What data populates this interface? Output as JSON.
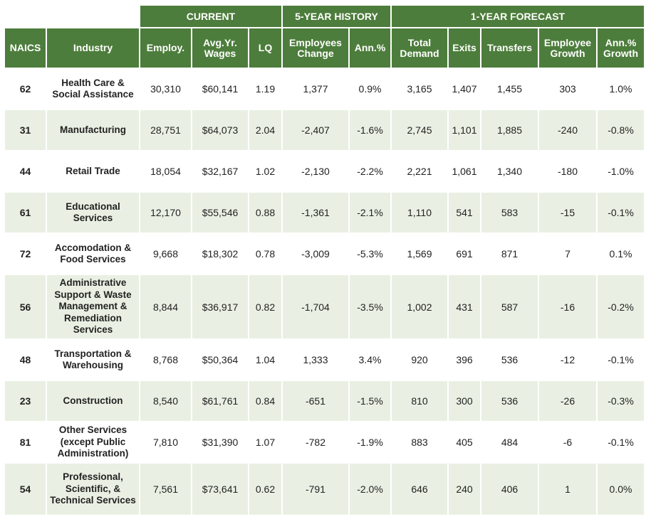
{
  "group_headers": {
    "current": "CURRENT",
    "history": "5-YEAR HISTORY",
    "forecast": "1-YEAR FORECAST"
  },
  "columns": {
    "naics": "NAICS",
    "industry": "Industry",
    "employ": "Employ.",
    "wages": "Avg.Yr. Wages",
    "lq": "LQ",
    "emp_change": "Employees Change",
    "ann_pct": "Ann.%",
    "total_demand": "Total Demand",
    "exits": "Exits",
    "transfers": "Transfers",
    "emp_growth": "Employee Growth",
    "ann_growth": "Ann.% Growth"
  },
  "rows": [
    {
      "naics": "62",
      "industry": "Health Care & Social Assistance",
      "employ": "30,310",
      "wages": "$60,141",
      "lq": "1.19",
      "emp_change": "1,377",
      "ann_pct": "0.9%",
      "total_demand": "3,165",
      "exits": "1,407",
      "transfers": "1,455",
      "emp_growth": "303",
      "ann_growth": "1.0%"
    },
    {
      "naics": "31",
      "industry": "Manufacturing",
      "employ": "28,751",
      "wages": "$64,073",
      "lq": "2.04",
      "emp_change": "-2,407",
      "ann_pct": "-1.6%",
      "total_demand": "2,745",
      "exits": "1,101",
      "transfers": "1,885",
      "emp_growth": "-240",
      "ann_growth": "-0.8%"
    },
    {
      "naics": "44",
      "industry": "Retail Trade",
      "employ": "18,054",
      "wages": "$32,167",
      "lq": "1.02",
      "emp_change": "-2,130",
      "ann_pct": "-2.2%",
      "total_demand": "2,221",
      "exits": "1,061",
      "transfers": "1,340",
      "emp_growth": "-180",
      "ann_growth": "-1.0%"
    },
    {
      "naics": "61",
      "industry": "Educational Services",
      "employ": "12,170",
      "wages": "$55,546",
      "lq": "0.88",
      "emp_change": "-1,361",
      "ann_pct": "-2.1%",
      "total_demand": "1,110",
      "exits": "541",
      "transfers": "583",
      "emp_growth": "-15",
      "ann_growth": "-0.1%"
    },
    {
      "naics": "72",
      "industry": "Accomodation & Food Services",
      "employ": "9,668",
      "wages": "$18,302",
      "lq": "0.78",
      "emp_change": "-3,009",
      "ann_pct": "-5.3%",
      "total_demand": "1,569",
      "exits": "691",
      "transfers": "871",
      "emp_growth": "7",
      "ann_growth": "0.1%"
    },
    {
      "naics": "56",
      "industry": "Administrative Support & Waste Management & Remediation Services",
      "employ": "8,844",
      "wages": "$36,917",
      "lq": "0.82",
      "emp_change": "-1,704",
      "ann_pct": "-3.5%",
      "total_demand": "1,002",
      "exits": "431",
      "transfers": "587",
      "emp_growth": "-16",
      "ann_growth": "-0.2%"
    },
    {
      "naics": "48",
      "industry": "Transportation & Warehousing",
      "employ": "8,768",
      "wages": "$50,364",
      "lq": "1.04",
      "emp_change": "1,333",
      "ann_pct": "3.4%",
      "total_demand": "920",
      "exits": "396",
      "transfers": "536",
      "emp_growth": "-12",
      "ann_growth": "-0.1%"
    },
    {
      "naics": "23",
      "industry": "Construction",
      "employ": "8,540",
      "wages": "$61,761",
      "lq": "0.84",
      "emp_change": "-651",
      "ann_pct": "-1.5%",
      "total_demand": "810",
      "exits": "300",
      "transfers": "536",
      "emp_growth": "-26",
      "ann_growth": "-0.3%"
    },
    {
      "naics": "81",
      "industry": "Other Services (except Public Administration)",
      "employ": "7,810",
      "wages": "$31,390",
      "lq": "1.07",
      "emp_change": "-782",
      "ann_pct": "-1.9%",
      "total_demand": "883",
      "exits": "405",
      "transfers": "484",
      "emp_growth": "-6",
      "ann_growth": "-0.1%"
    },
    {
      "naics": "54",
      "industry": "Professional, Scientific, & Technical Services",
      "employ": "7,561",
      "wages": "$73,641",
      "lq": "0.62",
      "emp_change": "-791",
      "ann_pct": "-2.0%",
      "total_demand": "646",
      "exits": "240",
      "transfers": "406",
      "emp_growth": "1",
      "ann_growth": "0.0%"
    }
  ]
}
